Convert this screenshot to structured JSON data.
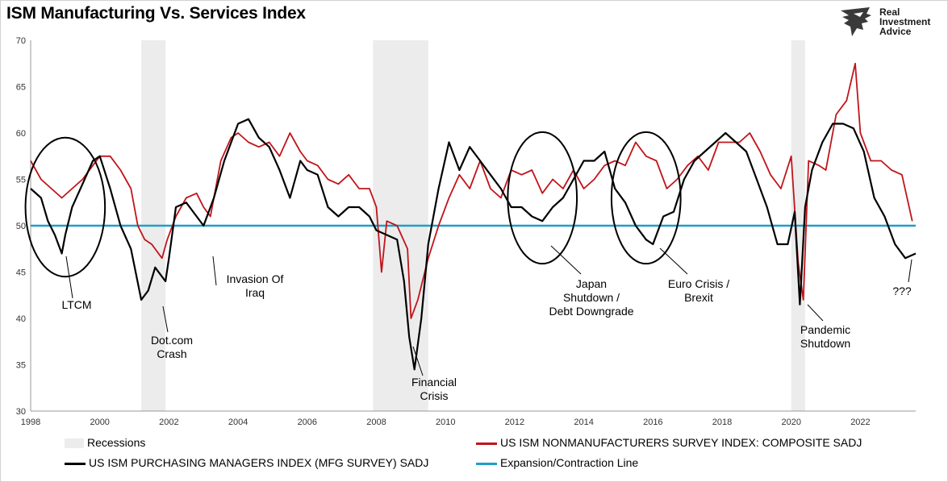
{
  "title": "ISM Manufacturing Vs. Services Index",
  "logo": {
    "line1": "Real",
    "line2": "Investment",
    "line3": "Advice"
  },
  "colors": {
    "manufacturing": "#000000",
    "services": "#c0151b",
    "expansion": "#1f9ec9",
    "recession": "#ececec"
  },
  "legend": {
    "recessions": "Recessions",
    "services": "US ISM NONMANUFACTURERS SURVEY INDEX: COMPOSITE SADJ",
    "manufacturing": "US ISM PURCHASING MANAGERS INDEX (MFG SURVEY) SADJ",
    "expansion": "Expansion/Contraction Line"
  },
  "annotations": [
    {
      "id": "ltcm",
      "lines": [
        "LTCM"
      ]
    },
    {
      "id": "dotcom",
      "lines": [
        "Dot.com",
        "Crash"
      ]
    },
    {
      "id": "iraq",
      "lines": [
        "Invasion Of",
        "Iraq"
      ]
    },
    {
      "id": "financial",
      "lines": [
        "Financial",
        "Crisis"
      ]
    },
    {
      "id": "japan",
      "lines": [
        "Japan",
        "Shutdown /",
        "Debt Downgrade"
      ]
    },
    {
      "id": "euro",
      "lines": [
        "Euro Crisis /",
        "Brexit"
      ]
    },
    {
      "id": "pandemic",
      "lines": [
        "Pandemic",
        "Shutdown"
      ]
    },
    {
      "id": "question",
      "lines": [
        "???"
      ]
    }
  ],
  "chart_data": {
    "type": "line",
    "title": "ISM Manufacturing Vs. Services Index",
    "xlabel": "",
    "ylabel": "",
    "xlim": [
      1998,
      2023.6
    ],
    "ylim": [
      30,
      70
    ],
    "x_ticks": [
      1998,
      2000,
      2002,
      2004,
      2006,
      2008,
      2010,
      2012,
      2014,
      2016,
      2018,
      2020,
      2022
    ],
    "y_ticks": [
      30,
      35,
      40,
      45,
      50,
      55,
      60,
      65,
      70
    ],
    "grid": false,
    "legend_position": "bottom",
    "recessions": [
      [
        2001.2,
        2001.9
      ],
      [
        2007.9,
        2009.5
      ],
      [
        2020.0,
        2020.4
      ]
    ],
    "reference_line": {
      "name": "Expansion/Contraction Line",
      "value": 50
    },
    "series": [
      {
        "name": "US ISM NONMANUFACTURERS SURVEY INDEX: COMPOSITE SADJ",
        "x": [
          1998.0,
          1998.3,
          1998.6,
          1998.9,
          1999.2,
          1999.5,
          1999.8,
          2000.0,
          2000.3,
          2000.6,
          2000.9,
          2001.1,
          2001.3,
          2001.5,
          2001.8,
          2001.95,
          2002.2,
          2002.5,
          2002.8,
          2003.0,
          2003.2,
          2003.5,
          2003.8,
          2004.0,
          2004.3,
          2004.6,
          2004.9,
          2005.2,
          2005.5,
          2005.8,
          2006.0,
          2006.3,
          2006.6,
          2006.9,
          2007.2,
          2007.5,
          2007.8,
          2008.0,
          2008.15,
          2008.3,
          2008.6,
          2008.9,
          2009.0,
          2009.2,
          2009.5,
          2009.8,
          2010.1,
          2010.4,
          2010.7,
          2011.0,
          2011.3,
          2011.6,
          2011.9,
          2012.2,
          2012.5,
          2012.8,
          2013.1,
          2013.4,
          2013.7,
          2014.0,
          2014.3,
          2014.6,
          2014.9,
          2015.2,
          2015.5,
          2015.8,
          2016.1,
          2016.4,
          2016.7,
          2017.0,
          2017.3,
          2017.6,
          2017.9,
          2018.2,
          2018.5,
          2018.8,
          2019.1,
          2019.4,
          2019.7,
          2020.0,
          2020.2,
          2020.35,
          2020.5,
          2020.8,
          2021.0,
          2021.3,
          2021.6,
          2021.85,
          2022.0,
          2022.3,
          2022.6,
          2022.9,
          2023.2,
          2023.5
        ],
        "values": [
          57,
          55,
          54,
          53,
          54,
          55,
          56.5,
          57.5,
          57.5,
          56,
          54,
          50,
          48.5,
          48,
          46.5,
          48.5,
          51,
          53,
          53.5,
          52,
          51,
          57,
          59.5,
          60,
          59,
          58.5,
          59,
          57.5,
          60,
          58,
          57,
          56.5,
          55,
          54.5,
          55.5,
          54,
          54,
          52,
          45,
          50.5,
          50,
          47.5,
          40,
          42,
          46.5,
          50,
          53,
          55.5,
          54,
          57,
          54,
          53,
          56,
          55.5,
          56,
          53.5,
          55,
          54,
          56,
          54,
          55,
          56.5,
          57,
          56.5,
          59,
          57.5,
          57,
          54,
          55,
          56.5,
          57.5,
          56,
          59,
          59,
          59,
          60,
          58,
          55.5,
          54,
          57.5,
          46,
          42,
          57,
          56.5,
          56,
          62,
          63.5,
          67.5,
          60,
          57,
          57,
          56,
          55.5,
          50.5
        ]
      },
      {
        "name": "US ISM PURCHASING MANAGERS INDEX (MFG SURVEY) SADJ",
        "x": [
          1998.0,
          1998.3,
          1998.5,
          1998.7,
          1998.9,
          1999.0,
          1999.2,
          1999.5,
          1999.8,
          2000.0,
          2000.3,
          2000.6,
          2000.9,
          2001.2,
          2001.4,
          2001.6,
          2001.9,
          2002.0,
          2002.2,
          2002.5,
          2002.8,
          2003.0,
          2003.3,
          2003.6,
          2004.0,
          2004.3,
          2004.6,
          2004.9,
          2005.2,
          2005.5,
          2005.8,
          2006.0,
          2006.3,
          2006.6,
          2006.9,
          2007.2,
          2007.5,
          2007.8,
          2008.0,
          2008.3,
          2008.6,
          2008.8,
          2008.95,
          2009.1,
          2009.3,
          2009.5,
          2009.8,
          2010.1,
          2010.4,
          2010.7,
          2011.0,
          2011.3,
          2011.6,
          2011.9,
          2012.2,
          2012.5,
          2012.8,
          2013.1,
          2013.4,
          2013.7,
          2014.0,
          2014.3,
          2014.6,
          2014.9,
          2015.2,
          2015.5,
          2015.8,
          2016.0,
          2016.3,
          2016.6,
          2016.9,
          2017.2,
          2017.5,
          2017.8,
          2018.1,
          2018.4,
          2018.7,
          2019.0,
          2019.3,
          2019.6,
          2019.9,
          2020.1,
          2020.25,
          2020.4,
          2020.6,
          2020.9,
          2021.2,
          2021.5,
          2021.8,
          2022.1,
          2022.4,
          2022.7,
          2023.0,
          2023.3,
          2023.6
        ],
        "values": [
          54,
          53,
          50.5,
          49,
          47,
          49,
          52,
          54.5,
          57,
          57.5,
          54,
          50,
          47.5,
          42,
          43,
          45.5,
          44,
          46.5,
          52,
          52.5,
          51,
          50,
          53,
          57,
          61,
          61.5,
          59.5,
          58.5,
          56,
          53,
          57,
          56,
          55.5,
          52,
          51,
          52,
          52,
          51,
          49.5,
          49,
          48.5,
          44,
          38,
          34.5,
          40,
          48,
          54,
          59,
          56,
          58.5,
          57,
          55.5,
          54,
          52,
          52,
          51,
          50.5,
          52,
          53,
          55,
          57,
          57,
          58,
          54,
          52.5,
          50,
          48.5,
          48,
          51,
          51.5,
          55,
          57,
          58,
          59,
          60,
          59,
          58,
          55,
          52,
          48,
          48,
          51.5,
          41.5,
          52,
          56,
          59,
          61,
          61,
          60.5,
          58,
          53,
          51,
          48,
          46.5,
          47
        ]
      }
    ]
  }
}
